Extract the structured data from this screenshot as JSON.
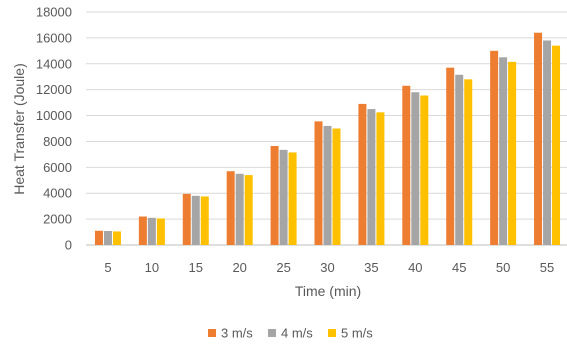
{
  "chart_data": {
    "type": "bar",
    "xlabel": "Time (min)",
    "ylabel": "Heat Transfer (Joule)",
    "ylim": [
      0,
      18000
    ],
    "yticks": [
      0,
      2000,
      4000,
      6000,
      8000,
      10000,
      12000,
      14000,
      16000,
      18000
    ],
    "grid": true,
    "legend_position": "bottom",
    "categories": [
      "5",
      "10",
      "15",
      "20",
      "25",
      "30",
      "35",
      "40",
      "45",
      "50",
      "55"
    ],
    "series": [
      {
        "name": "3 m/s",
        "color": "#ED7D31",
        "values": [
          1100,
          2200,
          3950,
          5700,
          7650,
          9550,
          10900,
          12300,
          13700,
          15000,
          16400
        ]
      },
      {
        "name": "4 m/s",
        "color": "#A5A5A5",
        "values": [
          1080,
          2100,
          3800,
          5500,
          7350,
          9200,
          10500,
          11800,
          13150,
          14500,
          15800
        ]
      },
      {
        "name": "5 m/s",
        "color": "#FFC000",
        "values": [
          1050,
          2050,
          3750,
          5400,
          7150,
          9000,
          10250,
          11550,
          12800,
          14150,
          15400
        ]
      }
    ]
  }
}
